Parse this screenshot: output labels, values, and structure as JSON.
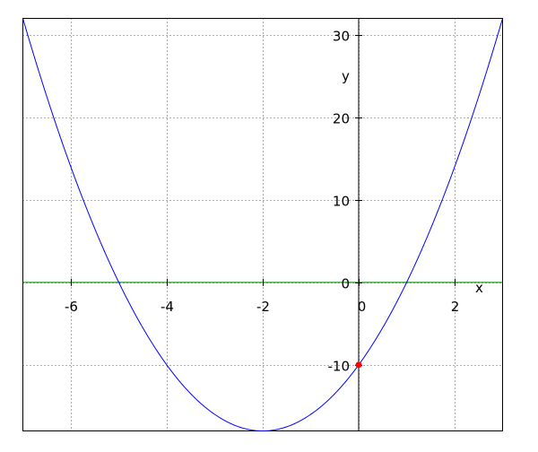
{
  "chart_data": {
    "type": "line",
    "title": "",
    "xlabel": "x",
    "ylabel": "y",
    "xlim": [
      -7,
      3
    ],
    "ylim": [
      -18,
      32
    ],
    "xticks": [
      -6,
      -4,
      -2,
      0,
      2
    ],
    "yticks": [
      -10,
      0,
      10,
      20,
      30
    ],
    "xtick_labels": [
      "-6",
      "-4",
      "-2",
      "0",
      "2"
    ],
    "ytick_labels": [
      "-10",
      "0",
      "10",
      "20",
      "30"
    ],
    "grid": true,
    "series": [
      {
        "function": "y = 2x^2 + 8x - 10",
        "coefficients": [
          2,
          8,
          -10
        ],
        "color": "#0000ff"
      }
    ],
    "axis_line": {
      "y": 0,
      "color": "#008000"
    },
    "points": [
      {
        "x": 0,
        "y": -10,
        "color": "#ff0000"
      }
    ]
  }
}
